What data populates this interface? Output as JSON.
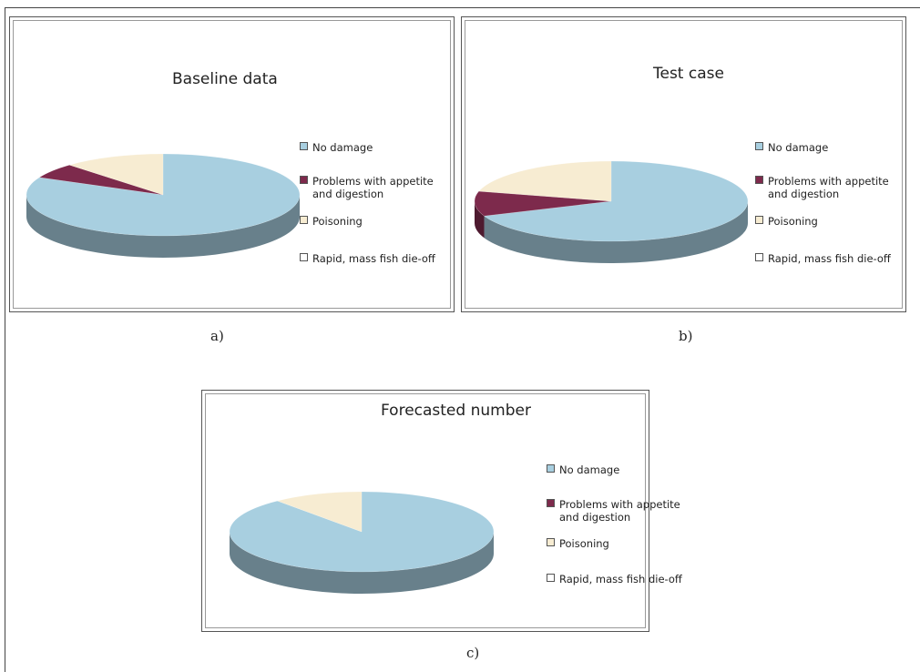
{
  "chart_data": [
    {
      "type": "pie",
      "title": "Baseline data",
      "categories": [
        "No damage",
        "Problems with appetite and digestion",
        "Poisoning",
        "Rapid, mass fish die-off"
      ],
      "values": [
        82,
        6,
        12,
        0
      ],
      "colors": [
        "#a8cfe0",
        "#7d2a4c",
        "#f7ecd2",
        "#ffffff"
      ],
      "legend": [
        "No damage",
        "Problems with appetite\nand digestion",
        "Poisoning",
        "Rapid, mass fish die-off"
      ],
      "legend_position": "right",
      "caption": "a)"
    },
    {
      "type": "pie",
      "title": "Test case",
      "categories": [
        "No damage",
        "Problems with appetite and digestion",
        "Poisoning",
        "Rapid, mass fish die-off"
      ],
      "values": [
        69,
        10,
        21,
        0
      ],
      "colors": [
        "#a8cfe0",
        "#7d2a4c",
        "#f7ecd2",
        "#ffffff"
      ],
      "legend": [
        "No damage",
        "Problems with appetite\nand digestion",
        "Poisoning",
        "Rapid, mass fish die-off"
      ],
      "legend_position": "right",
      "caption": "b)"
    },
    {
      "type": "pie",
      "title": "Forecasted number",
      "categories": [
        "No damage",
        "Problems with appetite and digestion",
        "Poisoning",
        "Rapid, mass fish die-off"
      ],
      "values": [
        89,
        0,
        11,
        0
      ],
      "colors": [
        "#a8cfe0",
        "#7d2a4c",
        "#f7ecd2",
        "#ffffff"
      ],
      "legend": [
        "No damage",
        "Problems with appetite\nand digestion",
        "Poisoning",
        "Rapid, mass fish die-off"
      ],
      "legend_position": "right",
      "caption": "c)"
    }
  ]
}
